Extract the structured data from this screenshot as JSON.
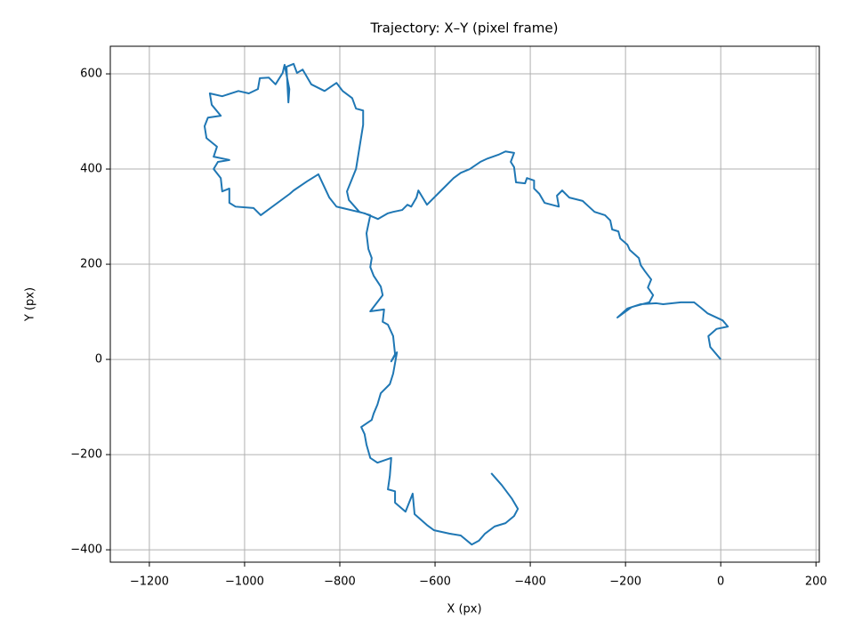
{
  "chart_data": {
    "type": "line",
    "title": "Trajectory: X–Y (pixel frame)",
    "xlabel": "X (px)",
    "ylabel": "Y (px)",
    "grid": true,
    "xlim": [
      -1282,
      207
    ],
    "ylim": [
      -426,
      658
    ],
    "xticks": [
      {
        "value": -1200,
        "label": "−1200"
      },
      {
        "value": -1000,
        "label": "−1000"
      },
      {
        "value": -800,
        "label": "−800"
      },
      {
        "value": -600,
        "label": "−600"
      },
      {
        "value": -400,
        "label": "−400"
      },
      {
        "value": -200,
        "label": "−200"
      },
      0,
      200
    ],
    "yticks": [
      {
        "value": -400,
        "label": "−400"
      },
      {
        "value": -200,
        "label": "−200"
      },
      0,
      200,
      400,
      600
    ],
    "x": [
      0,
      -22,
      -26,
      -9,
      15,
      4,
      -28,
      -41,
      -56,
      -84,
      -121,
      -135,
      -168,
      -196,
      -217,
      -187,
      -150,
      -142,
      -153,
      -146,
      -159,
      -168,
      -172,
      -191,
      -196,
      -211,
      -215,
      -228,
      -232,
      -243,
      -265,
      -277,
      -290,
      -318,
      -333,
      -344,
      -340,
      -355,
      -370,
      -381,
      -392,
      -392,
      -407,
      -411,
      -430,
      -434,
      -441,
      -434,
      -452,
      -467,
      -490,
      -505,
      -527,
      -546,
      -561,
      -576,
      -591,
      -607,
      -617,
      -635,
      -639,
      -650,
      -658,
      -669,
      -688,
      -699,
      -720,
      -748,
      -807,
      -822,
      -845,
      -869,
      -897,
      -905,
      -966,
      -981,
      -1019,
      -1032,
      -1032,
      -1047,
      -1050,
      -1065,
      -1056,
      -1032,
      -1065,
      -1058,
      -1080,
      -1084,
      -1077,
      -1050,
      -1069,
      -1073,
      -1047,
      -1013,
      -991,
      -972,
      -968,
      -949,
      -935,
      -920,
      -916,
      -906,
      -908,
      -912,
      -897,
      -890,
      -878,
      -860,
      -832,
      -807,
      -794,
      -774,
      -766,
      -751,
      -751,
      -766,
      -785,
      -781,
      -759,
      -736,
      -744,
      -740,
      -733,
      -736,
      -729,
      -714,
      -710,
      -736,
      -707,
      -710,
      -699,
      -688,
      -684,
      -692,
      -680,
      -688,
      -695,
      -714,
      -721,
      -729,
      -733,
      -755,
      -748,
      -744,
      -736,
      -721,
      -692,
      -695,
      -699,
      -684,
      -684,
      -662,
      -647,
      -643,
      -617,
      -602,
      -570,
      -546,
      -523,
      -508,
      -495,
      -475,
      -452,
      -434,
      -426,
      -439,
      -460,
      -482
    ],
    "series": [
      {
        "color": "#1f77b4",
        "values": [
          0,
          26,
          49,
          64,
          69,
          82,
          97,
          108,
          120,
          120,
          116,
          118,
          116,
          107,
          88,
          110,
          120,
          135,
          151,
          168,
          185,
          198,
          213,
          230,
          241,
          254,
          269,
          273,
          292,
          303,
          310,
          321,
          333,
          340,
          355,
          344,
          321,
          325,
          329,
          348,
          359,
          376,
          381,
          370,
          372,
          404,
          415,
          434,
          437,
          430,
          422,
          415,
          400,
          392,
          381,
          366,
          351,
          335,
          325,
          355,
          340,
          321,
          325,
          314,
          310,
          307,
          295,
          307,
          321,
          340,
          389,
          374,
          355,
          348,
          303,
          318,
          321,
          329,
          359,
          353,
          381,
          400,
          415,
          419,
          426,
          447,
          465,
          490,
          508,
          512,
          535,
          559,
          553,
          564,
          559,
          568,
          591,
          592,
          578,
          602,
          619,
          568,
          540,
          615,
          621,
          602,
          609,
          578,
          564,
          581,
          564,
          549,
          527,
          523,
          493,
          400,
          353,
          335,
          310,
          303,
          265,
          232,
          213,
          194,
          176,
          153,
          135,
          101,
          105,
          79,
          73,
          49,
          11,
          -4,
          15,
          -30,
          -52,
          -71,
          -95,
          -114,
          -127,
          -142,
          -157,
          -179,
          -207,
          -217,
          -207,
          -245,
          -273,
          -277,
          -301,
          -320,
          -282,
          -325,
          -348,
          -359,
          -366,
          -370,
          -389,
          -381,
          -366,
          -351,
          -344,
          -329,
          -314,
          -292,
          -264,
          -239
        ]
      }
    ]
  }
}
